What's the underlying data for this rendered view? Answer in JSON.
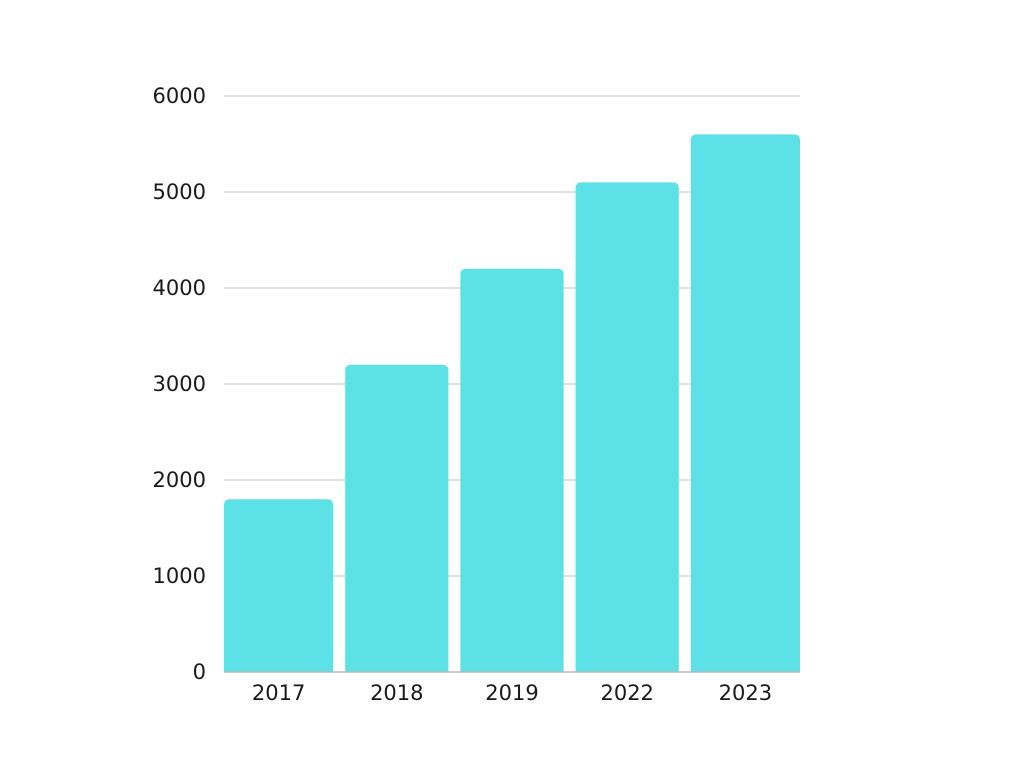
{
  "chart_data": {
    "type": "bar",
    "categories": [
      "2017",
      "2018",
      "2019",
      "2022",
      "2023"
    ],
    "values": [
      1800,
      3200,
      4200,
      5100,
      5600
    ],
    "y_ticks": [
      "0",
      "1000",
      "2000",
      "3000",
      "4000",
      "5000",
      "6000"
    ],
    "title": "",
    "xlabel": "",
    "ylabel": "",
    "ylim": [
      0,
      6000
    ],
    "grid": true,
    "legend": "none",
    "bar_color": "#5ce1e6",
    "grid_color": "#d6d6d6"
  }
}
